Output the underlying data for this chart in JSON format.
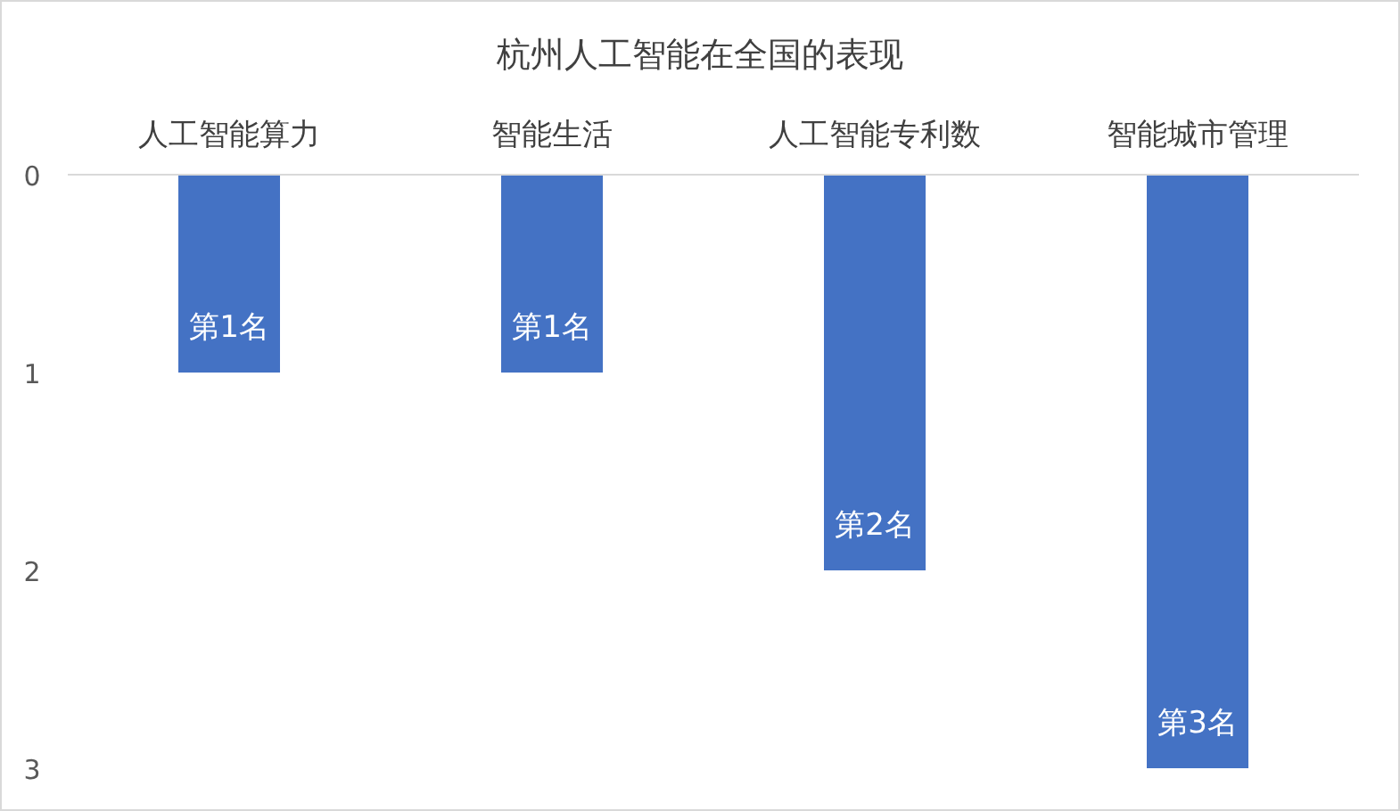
{
  "chart_data": {
    "type": "bar",
    "title": "杭州人工智能在全国的表现",
    "categories": [
      "人工智能算力",
      "智能生活",
      "人工智能专利数",
      "智能城市管理"
    ],
    "values": [
      1,
      1,
      2,
      3
    ],
    "value_labels": [
      "第1名",
      "第1名",
      "第2名",
      "第3名"
    ],
    "color": "#4472c4",
    "ylim": [
      3,
      0
    ],
    "yticks": [
      0,
      1,
      2,
      3
    ],
    "grid": false,
    "legend": false
  }
}
